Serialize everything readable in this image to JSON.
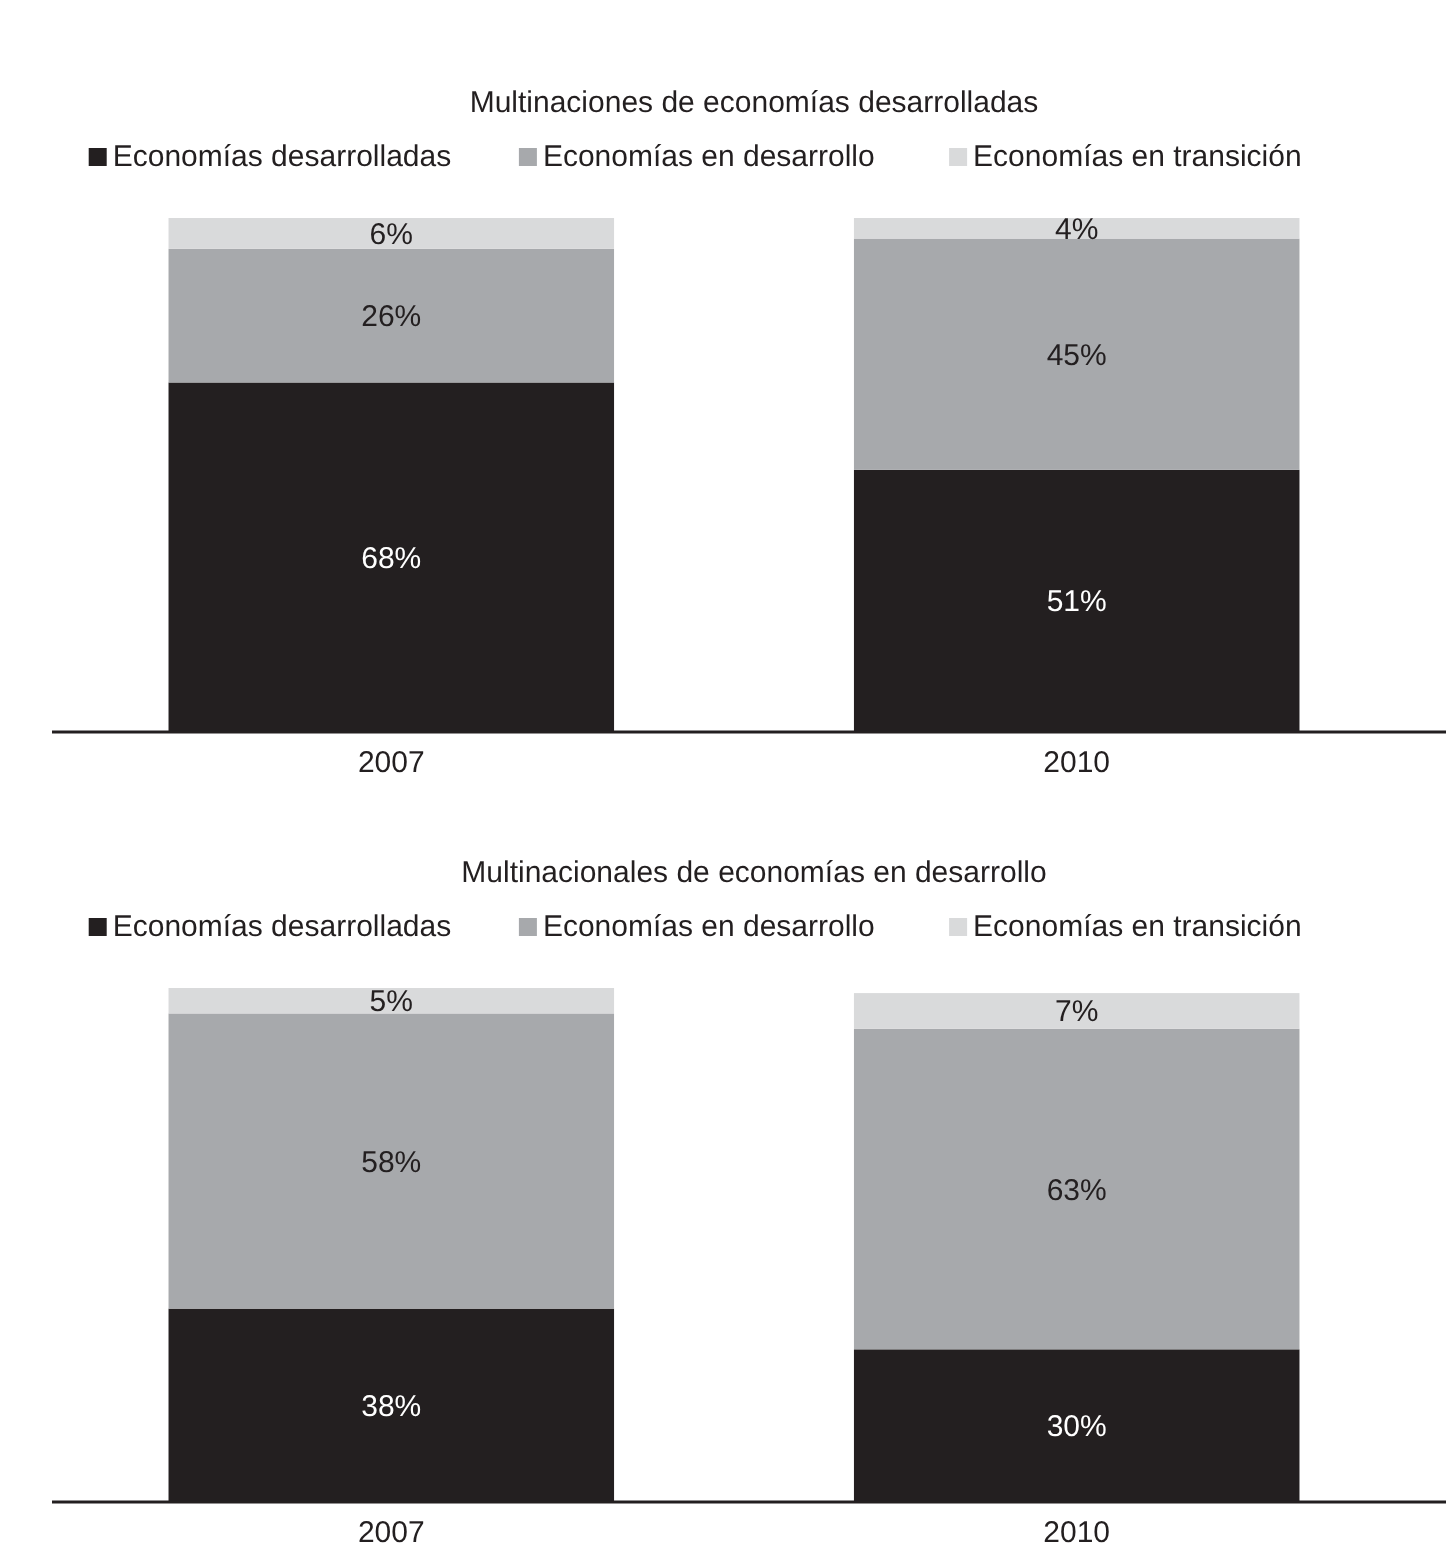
{
  "chart_data": [
    {
      "type": "bar",
      "title": "Multinaciones de economías desarrolladas",
      "categories": [
        "2007",
        "2010"
      ],
      "stacked": true,
      "legend": "top",
      "tick_labels": "x",
      "series": [
        {
          "name": "Economías desarrolladas",
          "color": "#231f20",
          "values": [
            68,
            51
          ],
          "value_labels": [
            "68%",
            "51%"
          ]
        },
        {
          "name": "Economías en desarrollo",
          "color": "#a7a9ac",
          "values": [
            26,
            45
          ],
          "value_labels": [
            "26%",
            "45%"
          ]
        },
        {
          "name": "Economías en transición",
          "color": "#d9dadb",
          "values": [
            6,
            4
          ],
          "value_labels": [
            "6%",
            "4%"
          ]
        }
      ]
    },
    {
      "type": "bar",
      "title": "Multinacionales de economías en desarrollo",
      "categories": [
        "2007",
        "2010"
      ],
      "stacked": true,
      "legend": "top",
      "tick_labels": "x",
      "series": [
        {
          "name": "Economías desarrolladas",
          "color": "#231f20",
          "values": [
            38,
            30
          ],
          "value_labels": [
            "38%",
            "30%"
          ]
        },
        {
          "name": "Economías en desarrollo",
          "color": "#a7a9ac",
          "values": [
            58,
            63
          ],
          "value_labels": [
            "58%",
            "63%"
          ]
        },
        {
          "name": "Economías en transición",
          "color": "#d9dadb",
          "values": [
            5,
            7
          ],
          "value_labels": [
            "5%",
            "7%"
          ]
        }
      ]
    }
  ]
}
